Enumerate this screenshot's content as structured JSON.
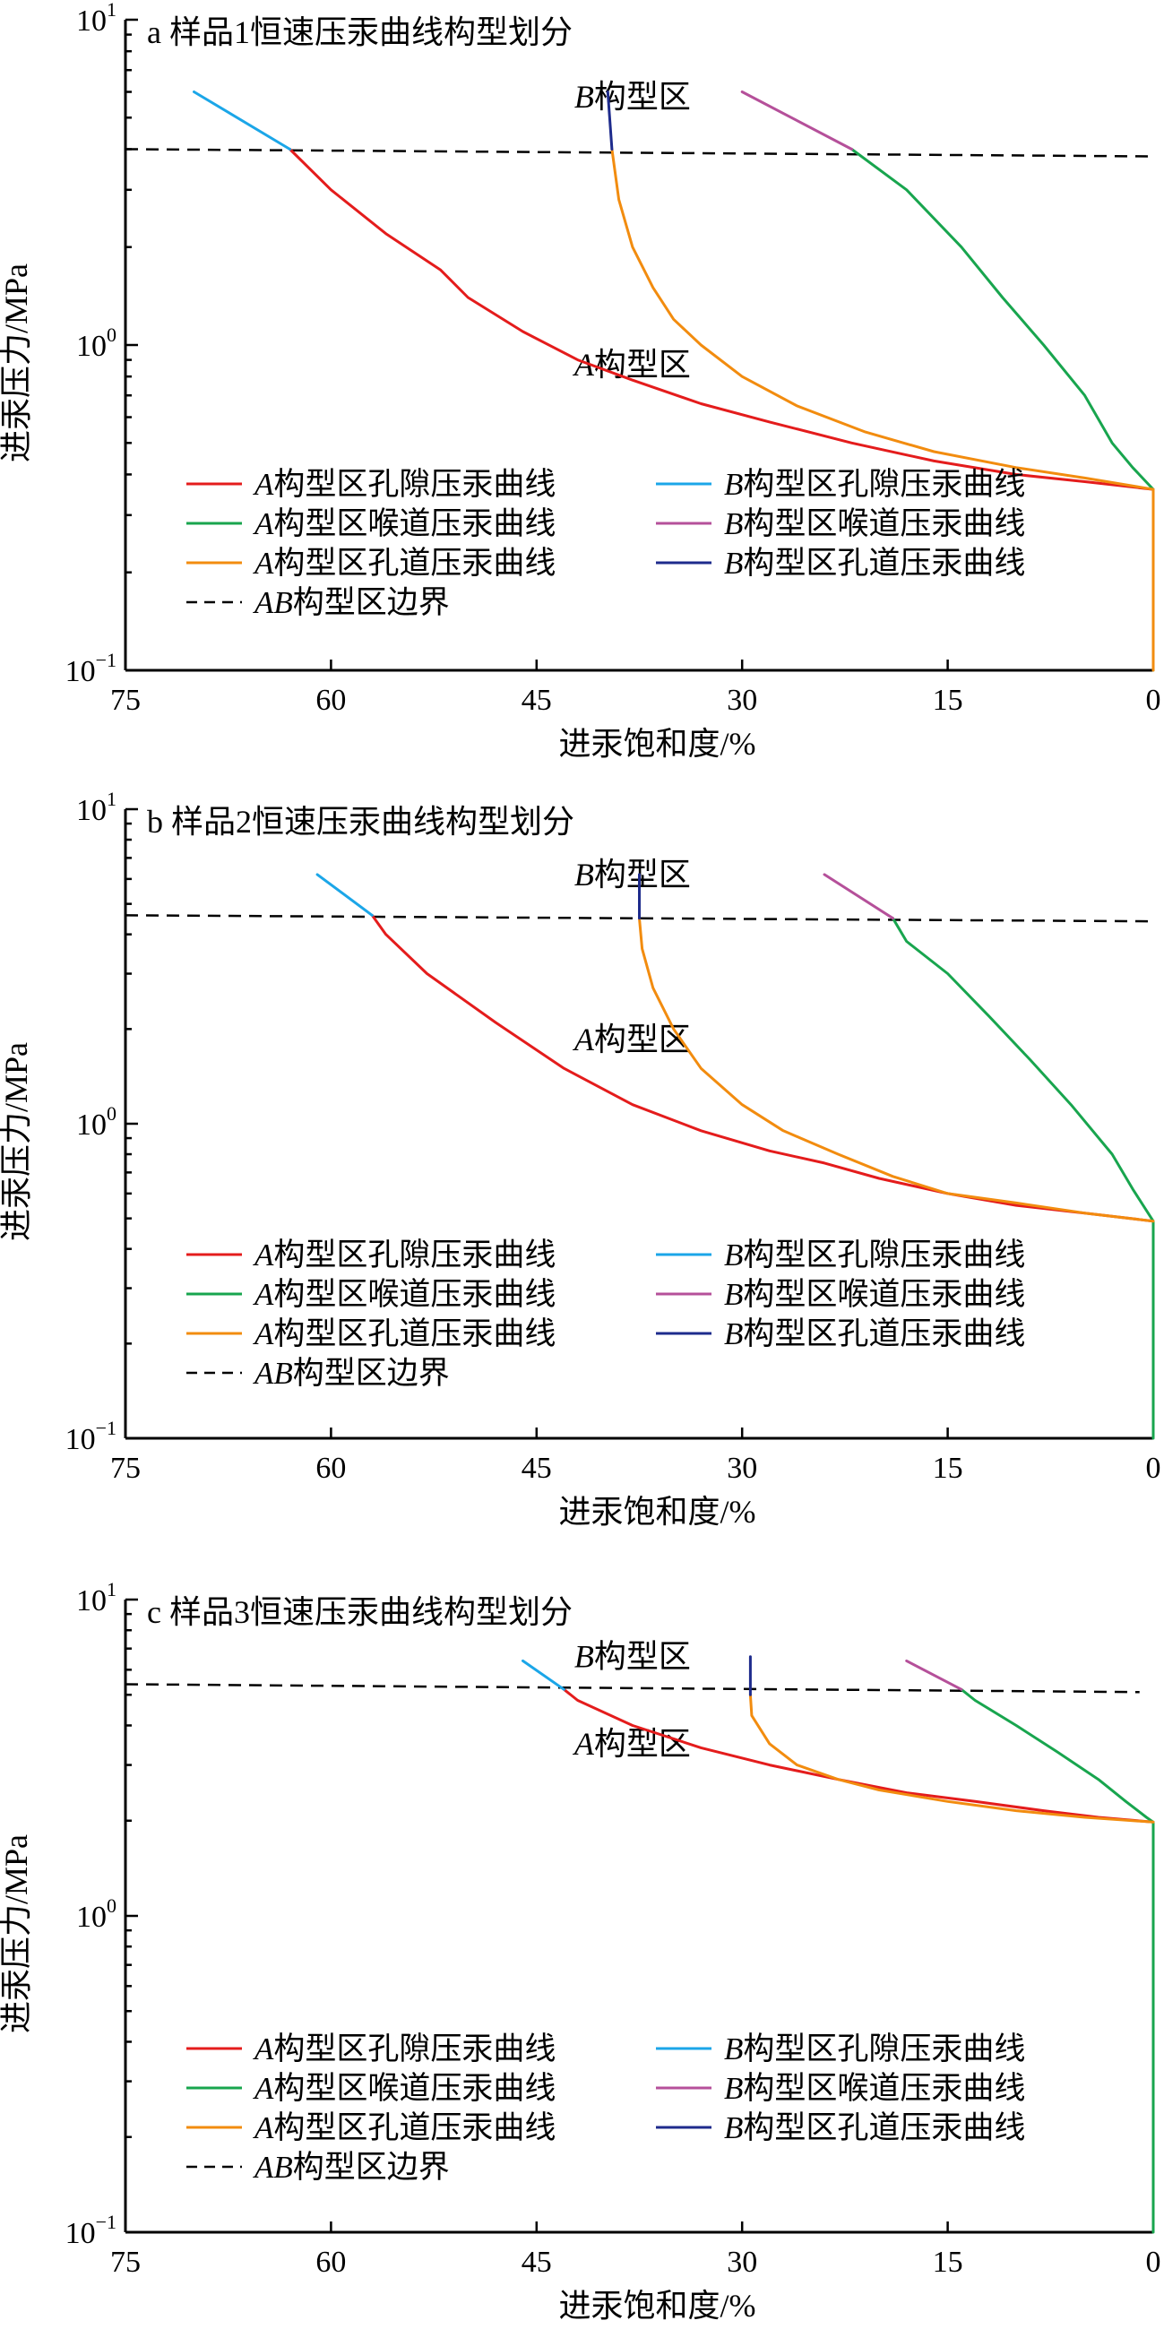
{
  "chart_data": [
    {
      "type": "line",
      "title": "a 样品1恒速压汞曲线构型划分",
      "xlabel": "进汞饱和度/%",
      "ylabel": "进汞压力/MPa",
      "x_reversed": true,
      "xlim": [
        75,
        0
      ],
      "ylim": [
        0.1,
        10
      ],
      "y_scale": "log",
      "x_ticks": [
        75,
        60,
        45,
        30,
        15,
        0
      ],
      "y_ticks": [
        {
          "value": 10,
          "base": "10",
          "exp": "1"
        },
        {
          "value": 1,
          "base": "10",
          "exp": "0"
        },
        {
          "value": 0.1,
          "base": "10",
          "exp": "−1"
        }
      ],
      "region_labels": {
        "b": "B构型区",
        "a": "A构型区",
        "b_at": [
          38,
          5.8
        ],
        "a_at": [
          38,
          0.87
        ]
      },
      "boundary": {
        "name": "AB构型区边界",
        "points": [
          [
            75,
            4.0
          ],
          [
            0,
            3.8
          ]
        ]
      },
      "series": [
        {
          "name": "A构型区孔隙压汞曲线",
          "color": "#e41c1c",
          "points": [
            [
              63,
              4.0
            ],
            [
              60,
              3.0
            ],
            [
              56,
              2.2
            ],
            [
              52,
              1.7
            ],
            [
              50,
              1.4
            ],
            [
              46,
              1.1
            ],
            [
              42,
              0.9
            ],
            [
              38,
              0.78
            ],
            [
              33,
              0.66
            ],
            [
              28,
              0.58
            ],
            [
              22,
              0.5
            ],
            [
              16,
              0.44
            ],
            [
              10,
              0.4
            ],
            [
              5,
              0.38
            ],
            [
              0,
              0.36
            ]
          ]
        },
        {
          "name": "B构型区孔隙压汞曲线",
          "color": "#1ba6e8",
          "points": [
            [
              70,
              6.0
            ],
            [
              63,
              4.0
            ]
          ]
        },
        {
          "name": "A构型区喉道压汞曲线",
          "color": "#18a54e",
          "points": [
            [
              22,
              4.0
            ],
            [
              18,
              3.0
            ],
            [
              14,
              2.0
            ],
            [
              11,
              1.4
            ],
            [
              8,
              1.0
            ],
            [
              5,
              0.7
            ],
            [
              3,
              0.5
            ],
            [
              1.5,
              0.42
            ],
            [
              0,
              0.36
            ],
            [
              0,
              0.1
            ]
          ]
        },
        {
          "name": "B构型区喉道压汞曲线",
          "color": "#b5509a",
          "points": [
            [
              30,
              6.0
            ],
            [
              22,
              4.0
            ]
          ]
        },
        {
          "name": "A构型区孔道压汞曲线",
          "color": "#f28c0f",
          "points": [
            [
              39.5,
              4.0
            ],
            [
              39,
              2.8
            ],
            [
              38,
              2.0
            ],
            [
              36.5,
              1.5
            ],
            [
              35,
              1.2
            ],
            [
              33,
              1.0
            ],
            [
              30,
              0.8
            ],
            [
              26,
              0.65
            ],
            [
              21,
              0.54
            ],
            [
              16,
              0.47
            ],
            [
              10,
              0.42
            ],
            [
              5,
              0.39
            ],
            [
              0,
              0.36
            ],
            [
              0,
              0.1
            ]
          ]
        },
        {
          "name": "B构型区孔道压汞曲线",
          "color": "#1e2b8c",
          "points": [
            [
              39.8,
              6.0
            ],
            [
              39.5,
              4.0
            ]
          ]
        }
      ]
    },
    {
      "type": "line",
      "title": "b 样品2恒速压汞曲线构型划分",
      "xlabel": "进汞饱和度/%",
      "ylabel": "进汞压力/MPa",
      "x_reversed": true,
      "xlim": [
        75,
        0
      ],
      "ylim": [
        0.1,
        10
      ],
      "y_scale": "log",
      "x_ticks": [
        75,
        60,
        45,
        30,
        15,
        0
      ],
      "y_ticks": [
        {
          "value": 10,
          "base": "10",
          "exp": "1"
        },
        {
          "value": 1,
          "base": "10",
          "exp": "0"
        },
        {
          "value": 0.1,
          "base": "10",
          "exp": "−1"
        }
      ],
      "region_labels": {
        "b": "B构型区",
        "a": "A构型区",
        "b_at": [
          38,
          6.2
        ],
        "a_at": [
          38,
          1.85
        ]
      },
      "boundary": {
        "name": "AB构型区边界",
        "points": [
          [
            75,
            4.6
          ],
          [
            0,
            4.4
          ]
        ]
      },
      "series": [
        {
          "name": "A构型区孔隙压汞曲线",
          "color": "#e41c1c",
          "points": [
            [
              57,
              4.6
            ],
            [
              56,
              4.0
            ],
            [
              53,
              3.0
            ],
            [
              48,
              2.1
            ],
            [
              43,
              1.5
            ],
            [
              38,
              1.15
            ],
            [
              33,
              0.95
            ],
            [
              28,
              0.82
            ],
            [
              24,
              0.75
            ],
            [
              20,
              0.67
            ],
            [
              15,
              0.6
            ],
            [
              10,
              0.55
            ],
            [
              5,
              0.52
            ],
            [
              0,
              0.49
            ]
          ]
        },
        {
          "name": "B构型区孔隙压汞曲线",
          "color": "#1ba6e8",
          "points": [
            [
              61,
              6.2
            ],
            [
              57,
              4.6
            ]
          ]
        },
        {
          "name": "A构型区喉道压汞曲线",
          "color": "#18a54e",
          "points": [
            [
              19,
              4.5
            ],
            [
              18,
              3.8
            ],
            [
              15,
              3.0
            ],
            [
              12,
              2.2
            ],
            [
              9,
              1.6
            ],
            [
              6,
              1.15
            ],
            [
              3,
              0.8
            ],
            [
              1.5,
              0.62
            ],
            [
              0,
              0.49
            ],
            [
              0,
              0.1
            ]
          ]
        },
        {
          "name": "B构型区喉道压汞曲线",
          "color": "#b5509a",
          "points": [
            [
              24,
              6.2
            ],
            [
              19,
              4.5
            ]
          ]
        },
        {
          "name": "A构型区孔道压汞曲线",
          "color": "#f28c0f",
          "points": [
            [
              37.5,
              4.5
            ],
            [
              37.3,
              3.6
            ],
            [
              36.5,
              2.7
            ],
            [
              35,
              2.0
            ],
            [
              33,
              1.5
            ],
            [
              30,
              1.15
            ],
            [
              27,
              0.95
            ],
            [
              23,
              0.8
            ],
            [
              19,
              0.68
            ],
            [
              15,
              0.6
            ],
            [
              10,
              0.56
            ],
            [
              5,
              0.52
            ],
            [
              0,
              0.49
            ]
          ]
        },
        {
          "name": "B构型区孔道压汞曲线",
          "color": "#1e2b8c",
          "points": [
            [
              37.5,
              6.2
            ],
            [
              37.5,
              4.5
            ]
          ]
        }
      ]
    },
    {
      "type": "line",
      "title": "c 样品3恒速压汞曲线构型划分",
      "xlabel": "进汞饱和度/%",
      "ylabel": "进汞压力/MPa",
      "x_reversed": true,
      "xlim": [
        75,
        0
      ],
      "ylim": [
        0.1,
        10
      ],
      "y_scale": "log",
      "x_ticks": [
        75,
        60,
        45,
        30,
        15,
        0
      ],
      "y_ticks": [
        {
          "value": 10,
          "base": "10",
          "exp": "1"
        },
        {
          "value": 1,
          "base": "10",
          "exp": "0"
        },
        {
          "value": 0.1,
          "base": "10",
          "exp": "−1"
        }
      ],
      "region_labels": {
        "b": "B构型区",
        "a": "A构型区",
        "b_at": [
          38,
          6.6
        ],
        "a_at": [
          38,
          3.5
        ]
      },
      "boundary": {
        "name": "AB构型区边界",
        "points": [
          [
            75,
            5.4
          ],
          [
            1,
            5.1
          ]
        ]
      },
      "series": [
        {
          "name": "A构型区孔隙压汞曲线",
          "color": "#e41c1c",
          "points": [
            [
              43,
              5.2
            ],
            [
              42,
              4.8
            ],
            [
              38,
              4.0
            ],
            [
              33,
              3.4
            ],
            [
              28,
              3.0
            ],
            [
              23,
              2.7
            ],
            [
              18,
              2.45
            ],
            [
              13,
              2.3
            ],
            [
              8,
              2.15
            ],
            [
              4,
              2.05
            ],
            [
              0,
              1.98
            ]
          ]
        },
        {
          "name": "B构型区孔隙压汞曲线",
          "color": "#1ba6e8",
          "points": [
            [
              46,
              6.4
            ],
            [
              43,
              5.2
            ]
          ]
        },
        {
          "name": "A构型区喉道压汞曲线",
          "color": "#18a54e",
          "points": [
            [
              14,
              5.2
            ],
            [
              13,
              4.8
            ],
            [
              10,
              4.0
            ],
            [
              7,
              3.3
            ],
            [
              4,
              2.7
            ],
            [
              2,
              2.3
            ],
            [
              0.5,
              2.05
            ],
            [
              0,
              1.98
            ],
            [
              0,
              0.1
            ]
          ]
        },
        {
          "name": "B构型区喉道压汞曲线",
          "color": "#b5509a",
          "points": [
            [
              18,
              6.4
            ],
            [
              14,
              5.2
            ]
          ]
        },
        {
          "name": "A构型区孔道压汞曲线",
          "color": "#f28c0f",
          "points": [
            [
              29.4,
              5.0
            ],
            [
              29.3,
              4.3
            ],
            [
              28,
              3.5
            ],
            [
              26,
              3.0
            ],
            [
              23,
              2.7
            ],
            [
              20,
              2.5
            ],
            [
              15,
              2.3
            ],
            [
              10,
              2.15
            ],
            [
              5,
              2.05
            ],
            [
              0,
              1.98
            ]
          ]
        },
        {
          "name": "B构型区孔道压汞曲线",
          "color": "#1e2b8c",
          "points": [
            [
              29.4,
              6.6
            ],
            [
              29.4,
              5.0
            ]
          ]
        }
      ]
    }
  ],
  "legend": {
    "items": [
      {
        "name": "A构型区孔隙压汞曲线",
        "prefix": "A",
        "rest": "构型区孔隙压汞曲线",
        "color": "#e41c1c",
        "style": "solid"
      },
      {
        "name": "B构型区孔隙压汞曲线",
        "prefix": "B",
        "rest": "构型区孔隙压汞曲线",
        "color": "#1ba6e8",
        "style": "solid"
      },
      {
        "name": "A构型区喉道压汞曲线",
        "prefix": "A",
        "rest": "构型区喉道压汞曲线",
        "color": "#18a54e",
        "style": "solid"
      },
      {
        "name": "B构型区喉道压汞曲线",
        "prefix": "B",
        "rest": "构型区喉道压汞曲线",
        "color": "#b5509a",
        "style": "solid"
      },
      {
        "name": "A构型区孔道压汞曲线",
        "prefix": "A",
        "rest": "构型区孔道压汞曲线",
        "color": "#f28c0f",
        "style": "solid"
      },
      {
        "name": "B构型区孔道压汞曲线",
        "prefix": "B",
        "rest": "构型区孔道压汞曲线",
        "color": "#1e2b8c",
        "style": "solid"
      },
      {
        "name": "AB构型区边界",
        "prefix": "AB",
        "rest": "构型区边界",
        "color": "#000000",
        "style": "dashed"
      }
    ]
  }
}
